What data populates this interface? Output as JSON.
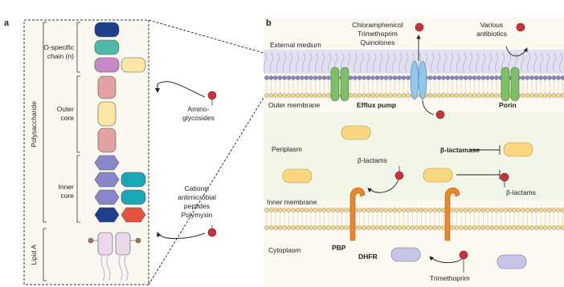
{
  "panel_a": {
    "label": "a",
    "o_specific": [
      "O-specific",
      "chain (n)"
    ],
    "outer_core": [
      "Outer",
      "core"
    ],
    "inner_core": [
      "Inner",
      "core"
    ],
    "polysaccharide": "Polysaccharide",
    "lipid_a": "Lipid A",
    "aminoglycosides": [
      "Amino-",
      "glycosides"
    ],
    "cationic": [
      "Cationic",
      "antimicrobial",
      "peptides",
      "Polymyxin"
    ]
  },
  "panel_b": {
    "label": "b",
    "top_drugs": [
      "Chloramphenicol",
      "Trimethoprim",
      "Quinolones"
    ],
    "various": [
      "Various",
      "antibiotics"
    ],
    "external_medium": "External medium",
    "outer_membrane": "Outer membrane",
    "efflux_pump": "Efflux pump",
    "porin": "Porin",
    "periplasm": "Periplasm",
    "beta_lactams_left": "β-lactams",
    "beta_lactamase": "β-lactamase",
    "beta_lactams_right": "β-lactams",
    "inner_membrane": "Inner membrane",
    "cytoplasm": "Cytoplasm",
    "pbp": "PBP",
    "dhfr": "DHFR",
    "trimethoprim": "Trimethoprim"
  }
}
